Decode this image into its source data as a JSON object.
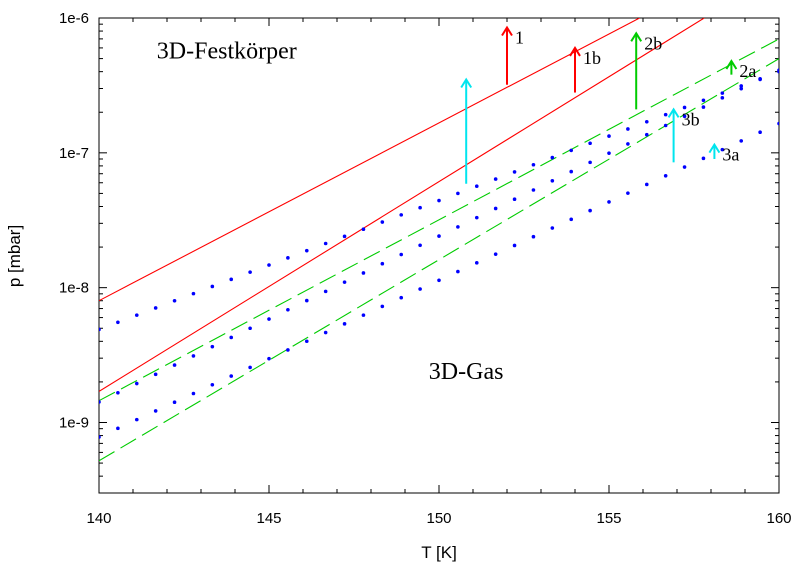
{
  "chart_data": {
    "type": "line",
    "xlabel": "T [K]",
    "ylabel": "p [mbar]",
    "xlim": [
      140,
      160
    ],
    "ylim": [
      3e-10,
      1e-06
    ],
    "yscale": "log",
    "xticks": [
      140,
      145,
      150,
      155,
      160
    ],
    "xtick_labels": [
      "140",
      "145",
      "150",
      "155",
      "160"
    ],
    "yticks": [
      1e-09,
      1e-08,
      1e-07,
      1e-06
    ],
    "ytick_labels": [
      "1e-9",
      "1e-8",
      "1e-7",
      "1e-6"
    ],
    "grid": false,
    "series": [
      {
        "id": "red-upper",
        "style": "solid",
        "color": "#ff0000",
        "x": [
          140,
          155.9
        ],
        "y": [
          8e-09,
          1e-06
        ]
      },
      {
        "id": "red-lower",
        "style": "solid",
        "color": "#ff0000",
        "x": [
          140,
          157.8
        ],
        "y": [
          1.7e-09,
          1e-06
        ]
      },
      {
        "id": "green-upper",
        "style": "dashed",
        "color": "#00cc00",
        "x": [
          140,
          160
        ],
        "y": [
          1.45e-09,
          7e-07
        ]
      },
      {
        "id": "green-lower",
        "style": "dashed",
        "color": "#00cc00",
        "x": [
          140,
          160
        ],
        "y": [
          5.2e-10,
          5e-07
        ]
      },
      {
        "id": "blue-upper",
        "style": "dotted",
        "color": "#0000ff",
        "x": [
          140,
          160
        ],
        "y": [
          4.9e-09,
          4e-07
        ]
      },
      {
        "id": "blue-middle",
        "style": "dotted",
        "color": "#0000ff",
        "x": [
          140,
          160
        ],
        "y": [
          1.42e-09,
          4.1e-07
        ]
      },
      {
        "id": "blue-lower",
        "style": "dotted",
        "color": "#0000ff",
        "x": [
          140,
          160
        ],
        "y": [
          7.8e-10,
          1.65e-07
        ]
      }
    ],
    "arrows": [
      {
        "label": "1",
        "color": "#ff0000",
        "x": 152.0,
        "y_from": 3.2e-07,
        "y_to": 8.5e-07
      },
      {
        "label": "1b",
        "color": "#ff0000",
        "x": 154.0,
        "y_from": 2.8e-07,
        "y_to": 6e-07
      },
      {
        "label": "2b",
        "color": "#00cc00",
        "x": 155.8,
        "y_from": 2.1e-07,
        "y_to": 7.7e-07
      },
      {
        "label": "2a",
        "color": "#00cc00",
        "x": 158.6,
        "y_from": 3.8e-07,
        "y_to": 4.8e-07
      },
      {
        "label": "3b",
        "color": "#00e5ee",
        "x": 156.9,
        "y_from": 8.5e-08,
        "y_to": 2.1e-07
      },
      {
        "label": "3a",
        "color": "#00e5ee",
        "x": 158.1,
        "y_from": 9e-08,
        "y_to": 1.15e-07
      },
      {
        "label": "",
        "color": "#00e5ee",
        "x": 150.8,
        "y_from": 5.9e-08,
        "y_to": 3.5e-07
      }
    ],
    "annotations": [
      {
        "id": "solid",
        "text": "3D-Festkörper",
        "x": 141.7,
        "y": 5e-07
      },
      {
        "id": "gas",
        "text": "3D-Gas",
        "x": 149.7,
        "y": 2.1e-09
      }
    ]
  }
}
